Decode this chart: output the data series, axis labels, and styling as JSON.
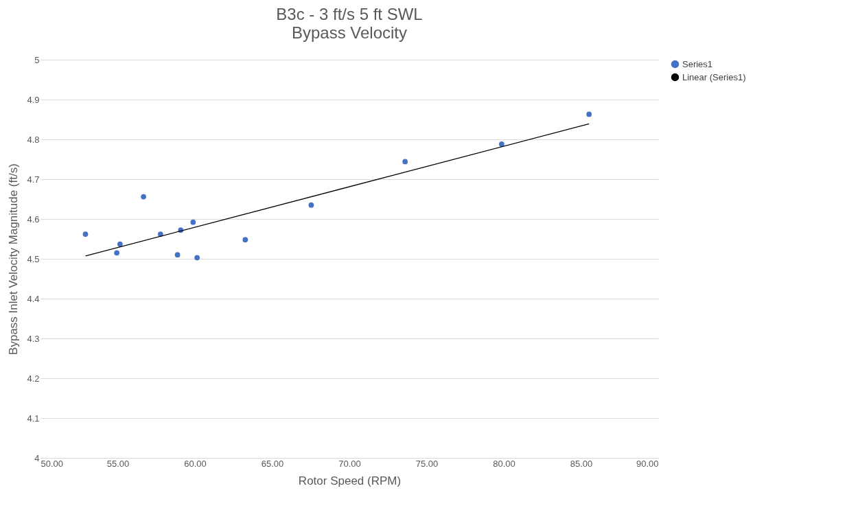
{
  "chart_data": {
    "type": "scatter",
    "title": "B3c - 3 ft/s 5 ft SWL",
    "subtitle": "Bypass Velocity",
    "xlabel": "Rotor Speed (RPM)",
    "ylabel": "Bypass Inlet Velocity Magnitude (ft/s)",
    "xlim": [
      50,
      90
    ],
    "xticks": [
      {
        "value": 50,
        "label": "50.00"
      },
      {
        "value": 55,
        "label": "55.00"
      },
      {
        "value": 60,
        "label": "60.00"
      },
      {
        "value": 65,
        "label": "65.00"
      },
      {
        "value": 70,
        "label": "70.00"
      },
      {
        "value": 75,
        "label": "75.00"
      },
      {
        "value": 80,
        "label": "80.00"
      },
      {
        "value": 85,
        "label": "85.00"
      },
      {
        "value": 90,
        "label": "90.00"
      }
    ],
    "ylim": [
      4,
      5
    ],
    "yticks": [
      4,
      4.1,
      4.2,
      4.3,
      4.4,
      4.5,
      4.6,
      4.7,
      4.8,
      4.9,
      5
    ],
    "grid": "y",
    "legend": "right",
    "series": [
      {
        "name": "Series1",
        "color": "#4472c4",
        "marker": "circle",
        "x": [
          52.91,
          55.15,
          54.94,
          56.67,
          57.77,
          59.08,
          58.87,
          59.88,
          60.14,
          63.26,
          67.53,
          73.61,
          79.86,
          85.52
        ],
        "values": [
          4.562,
          4.537,
          4.515,
          4.656,
          4.562,
          4.572,
          4.51,
          4.592,
          4.503,
          4.548,
          4.635,
          4.744,
          4.788,
          4.863
        ]
      },
      {
        "name": "Linear (Series1)",
        "type": "line",
        "marker": "none",
        "color": "#000000",
        "x": [
          52.91,
          85.52
        ],
        "values": [
          4.507,
          4.839
        ]
      }
    ]
  }
}
